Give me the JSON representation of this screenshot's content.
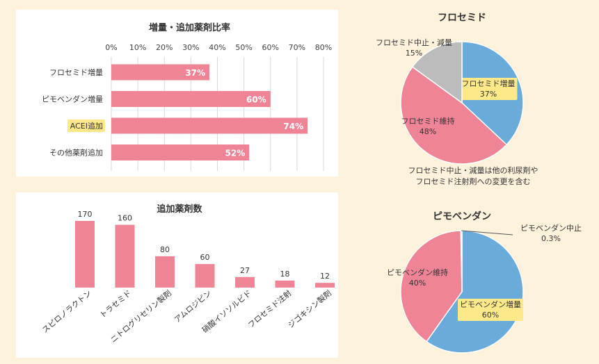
{
  "colors": {
    "pink": "#ef8497",
    "blue": "#6aabdc",
    "gray": "#bcbcbc",
    "highlight": "#fde98a",
    "grid": "#d9d9d9"
  },
  "chart_data": [
    {
      "type": "bar",
      "orientation": "horizontal",
      "title": "増量・追加薬剤比率",
      "categories": [
        "フロセミド増量",
        "ピモベンダン増量",
        "ACEI追加",
        "その他薬剤追加"
      ],
      "values": [
        37,
        60,
        74,
        52
      ],
      "value_labels": [
        "37%",
        "60%",
        "74%",
        "52%"
      ],
      "highlighted_category": "ACEI追加",
      "xlim": [
        0,
        80
      ],
      "ticks": [
        0,
        10,
        20,
        30,
        40,
        50,
        60,
        70,
        80
      ],
      "tick_labels": [
        "0%",
        "10%",
        "20%",
        "30%",
        "40%",
        "50%",
        "60%",
        "70%",
        "80%"
      ],
      "grid": true
    },
    {
      "type": "bar",
      "title": "追加薬剤数",
      "categories": [
        "スピロノラクトン",
        "トラセミド",
        "ニトログリセリン製剤",
        "アムロジピン",
        "硝酸イソソルビド",
        "フロセミド注射",
        "ジゴキシン製剤"
      ],
      "values": [
        170,
        160,
        80,
        60,
        27,
        18,
        12
      ],
      "ylim": [
        0,
        180
      ]
    },
    {
      "type": "pie",
      "title": "フロセミド",
      "slices": [
        {
          "label": "フロセミド増量",
          "value": 37,
          "value_label": "37%",
          "color": "#6aabdc",
          "highlight": true
        },
        {
          "label": "フロセミド維持",
          "value": 48,
          "value_label": "48%",
          "color": "#ef8497"
        },
        {
          "label": "フロセミド中止・減量",
          "value": 15,
          "value_label": "15%",
          "color": "#bcbcbc"
        }
      ],
      "note": [
        "フロセミド中止・減量は他の利尿剤や",
        "フロセミド注射剤への変更を含む"
      ]
    },
    {
      "type": "pie",
      "title": "ピモベンダン",
      "slices": [
        {
          "label": "ピモベンダン増量",
          "value": 60,
          "value_label": "60%",
          "color": "#6aabdc",
          "highlight": true
        },
        {
          "label": "ピモベンダン維持",
          "value": 40,
          "value_label": "40%",
          "color": "#ef8497"
        },
        {
          "label": "ピモベンダン中止",
          "value": 0.3,
          "value_label": "0.3%",
          "color": "#bcbcbc"
        }
      ]
    }
  ]
}
